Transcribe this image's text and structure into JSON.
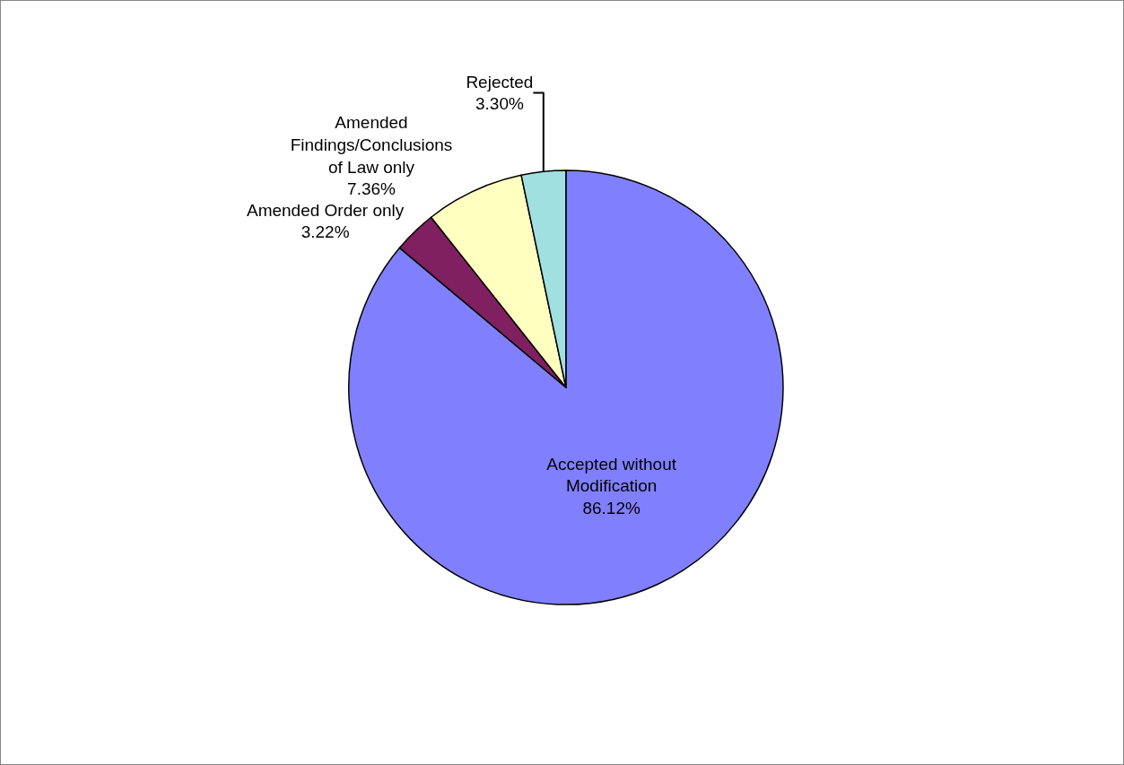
{
  "chart_data": {
    "type": "pie",
    "categories": [
      "Accepted without Modification",
      "Amended Order only",
      "Amended Findings/Conclusions of Law only",
      "Rejected"
    ],
    "values": [
      86.12,
      3.22,
      7.36,
      3.3
    ],
    "colors": [
      "#8080ff",
      "#802060",
      "#ffffc0",
      "#a0e0e0"
    ],
    "value_labels": [
      "86.12%",
      "3.22%",
      "7.36%",
      "3.30%"
    ]
  }
}
